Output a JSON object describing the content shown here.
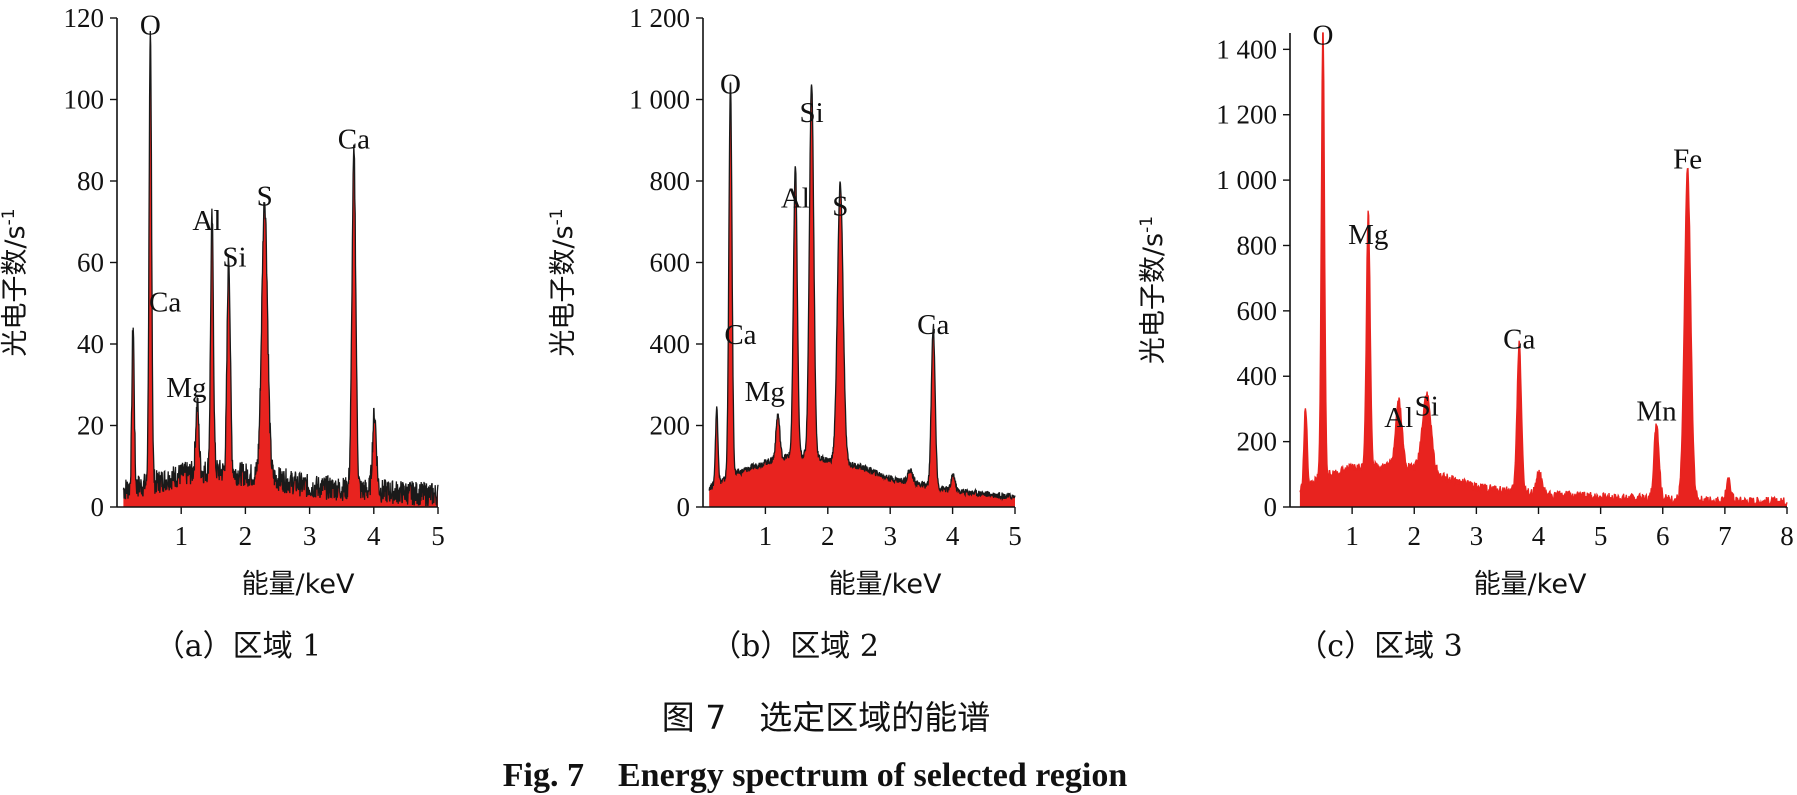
{
  "figure": {
    "caption_cn": "图 7　选定区域的能谱",
    "caption_en": "Fig. 7　Energy spectrum of selected region"
  },
  "chart_data": [
    {
      "type": "area",
      "caption": "（a）区域 1",
      "xlabel": "能量/keV",
      "ylabel": "光电子数/s",
      "ylabel_sup": "-1",
      "xlim": [
        0,
        5
      ],
      "ylim": [
        0,
        120
      ],
      "xticks": [
        1,
        2,
        3,
        4,
        5
      ],
      "xtick_labels": [
        "1",
        "2",
        "3",
        "4",
        "5"
      ],
      "yticks": [
        0,
        20,
        40,
        60,
        80,
        100,
        120
      ],
      "ytick_labels": [
        "0",
        "20",
        "40",
        "60",
        "80",
        "100",
        "120"
      ],
      "fill_color": "#e8231f",
      "line_color": "#1a1a1a",
      "baseline": [
        [
          0.0,
          4
        ],
        [
          0.6,
          6
        ],
        [
          1.0,
          8
        ],
        [
          1.5,
          9
        ],
        [
          2.5,
          7
        ],
        [
          3.0,
          5
        ],
        [
          4.0,
          4
        ],
        [
          5.0,
          3
        ]
      ],
      "noise": 3,
      "peaks": [
        {
          "label": "Ca",
          "x": 0.25,
          "y": 40,
          "w": 0.018
        },
        {
          "label": "O",
          "x": 0.52,
          "y": 109,
          "w": 0.02
        },
        {
          "label": "Mg",
          "x": 1.25,
          "y": 17,
          "w": 0.025
        },
        {
          "label": "Al",
          "x": 1.48,
          "y": 62,
          "w": 0.022
        },
        {
          "label": "Si",
          "x": 1.74,
          "y": 53,
          "w": 0.025
        },
        {
          "label": "S",
          "x": 2.3,
          "y": 68,
          "w": 0.045
        },
        {
          "label": "Ca",
          "x": 3.69,
          "y": 82,
          "w": 0.03
        },
        {
          "label": "",
          "x": 4.01,
          "y": 19,
          "w": 0.03
        }
      ],
      "annotations": [
        {
          "text": "O",
          "x": 0.52,
          "y": 116
        },
        {
          "text": "Ca",
          "x": 0.75,
          "y": 48
        },
        {
          "text": "Mg",
          "x": 1.08,
          "y": 27
        },
        {
          "text": "Al",
          "x": 1.4,
          "y": 68
        },
        {
          "text": "Si",
          "x": 1.83,
          "y": 59
        },
        {
          "text": "S",
          "x": 2.3,
          "y": 74
        },
        {
          "text": "Ca",
          "x": 3.69,
          "y": 88
        }
      ]
    },
    {
      "type": "area",
      "caption": "（b）区域 2",
      "xlabel": "能量/keV",
      "ylabel": "光电子数/s",
      "ylabel_sup": "-1",
      "xlim": [
        0,
        5
      ],
      "ylim": [
        0,
        1200
      ],
      "xticks": [
        1,
        2,
        3,
        4,
        5
      ],
      "xtick_labels": [
        "1",
        "2",
        "3",
        "4",
        "5"
      ],
      "yticks": [
        0,
        200,
        400,
        600,
        800,
        1000,
        1200
      ],
      "ytick_labels": [
        "0",
        "200",
        "400",
        "600",
        "800",
        "1 000",
        "1 200"
      ],
      "fill_color": "#e8231f",
      "line_color": "#1a1a1a",
      "baseline": [
        [
          0.0,
          40
        ],
        [
          0.5,
          80
        ],
        [
          1.0,
          110
        ],
        [
          1.5,
          130
        ],
        [
          2.5,
          100
        ],
        [
          3.0,
          70
        ],
        [
          4.0,
          40
        ],
        [
          5.0,
          25
        ]
      ],
      "noise": 8,
      "peaks": [
        {
          "label": "Ca",
          "x": 0.22,
          "y": 185,
          "w": 0.02
        },
        {
          "label": "O",
          "x": 0.44,
          "y": 965,
          "w": 0.025
        },
        {
          "label": "Mg",
          "x": 1.2,
          "y": 110,
          "w": 0.03
        },
        {
          "label": "Al",
          "x": 1.48,
          "y": 710,
          "w": 0.03
        },
        {
          "label": "Si",
          "x": 1.74,
          "y": 920,
          "w": 0.035
        },
        {
          "label": "S",
          "x": 2.2,
          "y": 685,
          "w": 0.045
        },
        {
          "label": "",
          "x": 3.32,
          "y": 30,
          "w": 0.04
        },
        {
          "label": "Ca",
          "x": 3.69,
          "y": 395,
          "w": 0.03
        },
        {
          "label": "",
          "x": 4.01,
          "y": 40,
          "w": 0.03
        }
      ],
      "annotations": [
        {
          "text": "O",
          "x": 0.44,
          "y": 1015
        },
        {
          "text": "Ca",
          "x": 0.6,
          "y": 400
        },
        {
          "text": "Mg",
          "x": 0.99,
          "y": 260
        },
        {
          "text": "Al",
          "x": 1.48,
          "y": 735
        },
        {
          "text": "Si",
          "x": 1.74,
          "y": 945
        },
        {
          "text": "S",
          "x": 2.2,
          "y": 715
        },
        {
          "text": "Ca",
          "x": 3.69,
          "y": 425
        }
      ]
    },
    {
      "type": "area",
      "caption": "（c）区域 3",
      "xlabel": "能量/keV",
      "ylabel": "光电子数/s",
      "ylabel_sup": "-1",
      "xlim": [
        0,
        8
      ],
      "ylim": [
        0,
        1450
      ],
      "xticks": [
        1,
        2,
        3,
        4,
        5,
        6,
        7,
        8
      ],
      "xtick_labels": [
        "1",
        "2",
        "3",
        "4",
        "5",
        "6",
        "7",
        "8"
      ],
      "yticks": [
        0,
        200,
        400,
        600,
        800,
        1000,
        1200,
        1400
      ],
      "ytick_labels": [
        "0",
        "200",
        "400",
        "600",
        "800",
        "1 000",
        "1 200",
        "1 400"
      ],
      "fill_color": "#e8231f",
      "line_color": "#e8231f",
      "baseline": [
        [
          0.0,
          30
        ],
        [
          0.5,
          90
        ],
        [
          1.0,
          120
        ],
        [
          1.8,
          130
        ],
        [
          2.5,
          90
        ],
        [
          3.0,
          60
        ],
        [
          4.0,
          40
        ],
        [
          5.0,
          30
        ],
        [
          6.0,
          25
        ],
        [
          7.0,
          20
        ],
        [
          8.0,
          15
        ]
      ],
      "noise": 14,
      "peaks": [
        {
          "label": "",
          "x": 0.25,
          "y": 245,
          "w": 0.025
        },
        {
          "label": "O",
          "x": 0.53,
          "y": 1390,
          "w": 0.025
        },
        {
          "label": "Mg",
          "x": 1.26,
          "y": 780,
          "w": 0.03
        },
        {
          "label": "Al",
          "x": 1.75,
          "y": 200,
          "w": 0.05
        },
        {
          "label": "Si",
          "x": 2.2,
          "y": 240,
          "w": 0.07
        },
        {
          "label": "Ca",
          "x": 3.69,
          "y": 460,
          "w": 0.035
        },
        {
          "label": "",
          "x": 4.01,
          "y": 65,
          "w": 0.04
        },
        {
          "label": "Mn",
          "x": 5.9,
          "y": 235,
          "w": 0.04
        },
        {
          "label": "Fe",
          "x": 6.4,
          "y": 1010,
          "w": 0.05
        },
        {
          "label": "",
          "x": 7.06,
          "y": 60,
          "w": 0.04
        }
      ],
      "annotations": [
        {
          "text": "O",
          "x": 0.53,
          "y": 1415
        },
        {
          "text": "Mg",
          "x": 1.26,
          "y": 805
        },
        {
          "text": "Al",
          "x": 1.75,
          "y": 245
        },
        {
          "text": "Si",
          "x": 2.2,
          "y": 280
        },
        {
          "text": "Ca",
          "x": 3.69,
          "y": 485
        },
        {
          "text": "Mn",
          "x": 5.9,
          "y": 265
        },
        {
          "text": "Fe",
          "x": 6.4,
          "y": 1035
        }
      ]
    }
  ]
}
